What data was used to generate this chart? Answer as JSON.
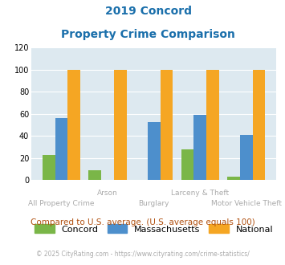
{
  "title_line1": "2019 Concord",
  "title_line2": "Property Crime Comparison",
  "categories": [
    "All Property Crime",
    "Arson",
    "Burglary",
    "Larceny & Theft",
    "Motor Vehicle Theft"
  ],
  "concord": [
    23,
    9,
    0,
    28,
    3
  ],
  "massachusetts": [
    56,
    0,
    53,
    59,
    41
  ],
  "national": [
    100,
    100,
    100,
    100,
    100
  ],
  "color_concord": "#7ab648",
  "color_massachusetts": "#4d8fcc",
  "color_national": "#f5a623",
  "ylim": [
    0,
    120
  ],
  "yticks": [
    0,
    20,
    40,
    60,
    80,
    100,
    120
  ],
  "bg_color": "#dde9f0",
  "note": "Compared to U.S. average. (U.S. average equals 100)",
  "footer": "© 2025 CityRating.com - https://www.cityrating.com/crime-statistics/",
  "title_color": "#1a6fab",
  "xlabel_color": "#aaaaaa",
  "note_color": "#b05010",
  "footer_color": "#aaaaaa",
  "labels_row1": [
    "",
    "Arson",
    "",
    "Larceny & Theft",
    ""
  ],
  "labels_row2": [
    "All Property Crime",
    "",
    "Burglary",
    "",
    "Motor Vehicle Theft"
  ]
}
